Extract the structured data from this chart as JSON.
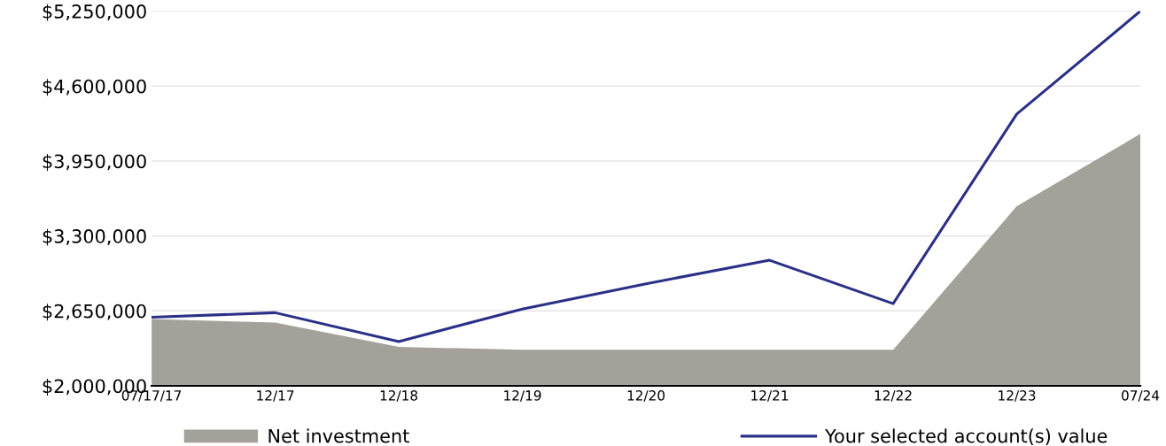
{
  "chart_data": {
    "type": "area",
    "categories": [
      "07/17/17",
      "12/17",
      "12/18",
      "12/19",
      "12/20",
      "12/21",
      "12/22",
      "12/23",
      "07/24"
    ],
    "series": [
      {
        "name": "Net investment",
        "color": "#a3a29a",
        "values": [
          2580000,
          2548000,
          2337000,
          2313000,
          2313000,
          2313000,
          2313000,
          3558000,
          4185000
        ]
      },
      {
        "name": "Your selected account(s) value",
        "type": "line",
        "color": "#2b3087",
        "values": [
          2595000,
          2634000,
          2384000,
          2666000,
          2885000,
          3089000,
          2713000,
          4357000,
          5250000
        ]
      }
    ],
    "ylim": [
      2000000,
      5250000
    ],
    "yticks": [
      {
        "value": 2000000,
        "label": "$2,000,000"
      },
      {
        "value": 2650000,
        "label": "$2,650,000"
      },
      {
        "value": 3300000,
        "label": "$3,300,000"
      },
      {
        "value": 3950000,
        "label": "$3,950,000"
      },
      {
        "value": 4600000,
        "label": "$4,600,000"
      },
      {
        "value": 5250000,
        "label": "$5,250,000"
      }
    ],
    "grid": "y",
    "legend": "bottom"
  }
}
